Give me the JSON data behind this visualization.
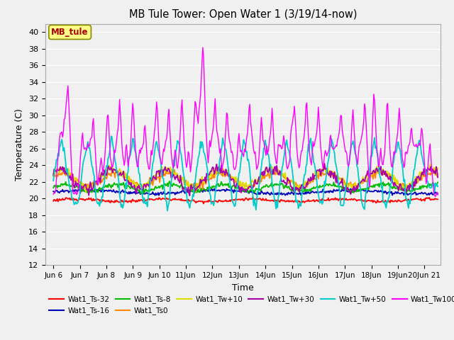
{
  "title": "MB Tule Tower: Open Water 1 (3/19/14-now)",
  "xlabel": "Time",
  "ylabel": "Temperature (C)",
  "ylim": [
    12,
    41
  ],
  "yticks": [
    12,
    14,
    16,
    18,
    20,
    22,
    24,
    26,
    28,
    30,
    32,
    34,
    36,
    38,
    40
  ],
  "x_tick_labels": [
    "Jun 6",
    "Jun 7",
    "Jun 8",
    "Jun 9",
    "Jun 10",
    "11Jun",
    "12Jun",
    "13Jun",
    "14Jun",
    "15Jun",
    "16Jun",
    "17Jun",
    "18Jun",
    "19Jun",
    "20Jun 21"
  ],
  "x_tick_positions": [
    0,
    1,
    2,
    3,
    4,
    5,
    6,
    7,
    8,
    9,
    10,
    11,
    12,
    13,
    14
  ],
  "series_colors": {
    "Wat1_Ts-32": "#ff0000",
    "Wat1_Ts-16": "#0000bb",
    "Wat1_Ts-8": "#00bb00",
    "Wat1_Ts0": "#ff8800",
    "Wat1_Tw+10": "#dddd00",
    "Wat1_Tw+30": "#aa00aa",
    "Wat1_Tw+50": "#00cccc",
    "Wat1_Tw100": "#ff00ff"
  },
  "legend_label": "MB_tule",
  "legend_box_facecolor": "#ffff88",
  "legend_text_color": "#aa0000",
  "legend_box_edgecolor": "#888800",
  "background_color": "#f0f0f0",
  "plot_bg_color": "#f0f0f0",
  "grid_color": "#ffffff"
}
